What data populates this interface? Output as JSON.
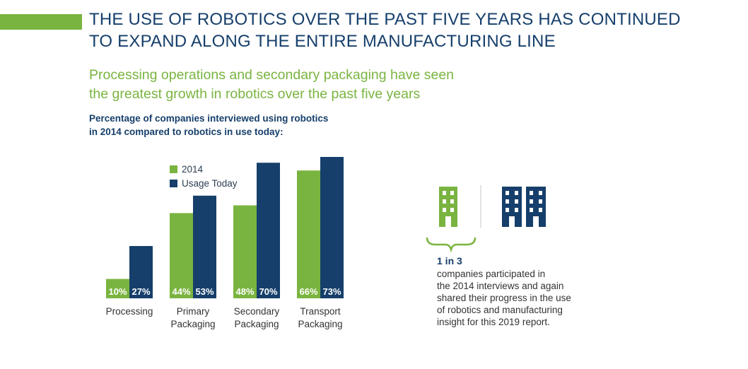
{
  "colors": {
    "green": "#7ab440",
    "navy": "#163f6b"
  },
  "headline": {
    "line1": "THE USE OF ROBOTICS OVER THE PAST FIVE YEARS HAS CONTINUED",
    "line2": "TO EXPAND ALONG THE ENTIRE MANUFACTURING LINE"
  },
  "subhead": {
    "line1": "Processing operations and secondary packaging have seen",
    "line2": "the greatest growth in robotics over the past five years"
  },
  "chart_title": {
    "line1": "Percentage of companies interviewed using robotics",
    "line2": "in 2014 compared to robotics in use today:"
  },
  "chart_data": {
    "type": "bar",
    "title": "Percentage of companies interviewed using robotics in 2014 compared to robotics in use today:",
    "categories": [
      "Processing",
      "Primary Packaging",
      "Secondary Packaging",
      "Transport Packaging"
    ],
    "category_lines": [
      [
        "Processing"
      ],
      [
        "Primary",
        "Packaging"
      ],
      [
        "Secondary",
        "Packaging"
      ],
      [
        "Transport",
        "Packaging"
      ]
    ],
    "series": [
      {
        "name": "2014",
        "values": [
          10,
          44,
          48,
          66
        ],
        "labels": [
          "10%",
          "44%",
          "48%",
          "66%"
        ]
      },
      {
        "name": "Usage Today",
        "values": [
          27,
          53,
          70,
          73
        ],
        "labels": [
          "27%",
          "53%",
          "70%",
          "73%"
        ]
      }
    ],
    "ylim": [
      0,
      73
    ],
    "xlabel": "",
    "ylabel": "",
    "legend": "top-left"
  },
  "callout": {
    "icons": [
      "building-icon",
      "building-icon",
      "building-icon"
    ],
    "stat": "1 in 3",
    "text_lines": [
      "companies participated in",
      "the 2014 interviews and again",
      "shared their progress in the use",
      "of robotics and manufacturing",
      "insight for this 2019 report."
    ]
  }
}
